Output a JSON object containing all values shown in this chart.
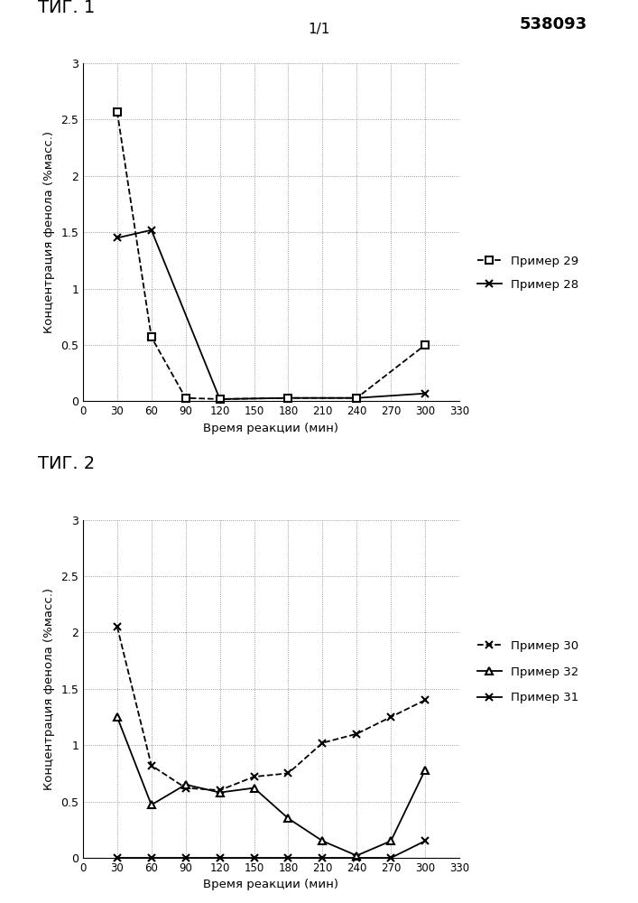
{
  "page_number": "538093",
  "page_sub": "1/1",
  "fig1_title": "ΤИГ. 1",
  "fig2_title": "ΤИГ. 2",
  "ylabel": "Концентрация фенола (%масс.)",
  "xlabel": "Время реакции (мин)",
  "ylim": [
    0,
    3
  ],
  "yticks": [
    0,
    0.5,
    1.0,
    1.5,
    2.0,
    2.5,
    3.0
  ],
  "xticks": [
    0,
    30,
    60,
    90,
    120,
    150,
    180,
    210,
    240,
    270,
    300,
    330
  ],
  "fig1": {
    "primer28": {
      "label": "Пример 28",
      "x": [
        30,
        60,
        120,
        180,
        240,
        300
      ],
      "y": [
        1.45,
        1.52,
        0.02,
        0.03,
        0.03,
        0.07
      ],
      "linestyle": "solid",
      "marker": "x",
      "color": "#000000"
    },
    "primer29": {
      "label": "Пример 29",
      "x": [
        30,
        60,
        90,
        120,
        180,
        240,
        300
      ],
      "y": [
        2.57,
        0.57,
        0.03,
        0.02,
        0.03,
        0.03,
        0.5
      ],
      "linestyle": "dashed",
      "marker": "s",
      "color": "#000000"
    }
  },
  "fig2": {
    "primer30": {
      "label": "Пример 30",
      "x": [
        30,
        60,
        90,
        120,
        150,
        180,
        210,
        240,
        270,
        300
      ],
      "y": [
        2.05,
        0.82,
        0.62,
        0.6,
        0.72,
        0.75,
        1.02,
        1.1,
        1.25,
        1.4
      ],
      "linestyle": "dashed",
      "marker": "x",
      "color": "#000000"
    },
    "primer31": {
      "label": "Пример 31",
      "x": [
        30,
        60,
        90,
        120,
        150,
        180,
        210,
        240,
        270,
        300
      ],
      "y": [
        0.0,
        0.0,
        0.0,
        0.0,
        0.0,
        0.0,
        0.0,
        0.0,
        0.0,
        0.15
      ],
      "linestyle": "solid",
      "marker": "x",
      "color": "#000000"
    },
    "primer32": {
      "label": "Пример 32",
      "x": [
        30,
        60,
        90,
        120,
        150,
        180,
        210,
        240,
        270,
        300
      ],
      "y": [
        1.25,
        0.47,
        0.65,
        0.58,
        0.62,
        0.35,
        0.15,
        0.02,
        0.15,
        0.78
      ],
      "linestyle": "solid",
      "marker": "^",
      "color": "#000000"
    }
  }
}
